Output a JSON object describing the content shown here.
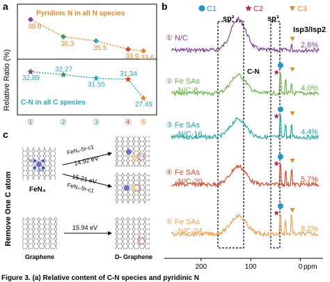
{
  "panels": {
    "a": "a",
    "b": "b",
    "c": "c"
  },
  "chart_data": [
    {
      "type": "scatter",
      "panel": "a",
      "ylabel": "Relative Ratio (%)",
      "x_ticks": [
        "①",
        "②",
        "③",
        "④",
        "⑤"
      ],
      "series": [
        {
          "name": "Pyridinic N in all N species",
          "color": "#e8871e",
          "labels": [
            "39.6",
            "36.3",
            "35.5",
            "33.9",
            "33.6"
          ],
          "values": [
            39.6,
            36.3,
            35.5,
            33.9,
            33.6
          ]
        },
        {
          "name": "C-N in all C species",
          "color": "#27a9b8",
          "labels": [
            "32.89",
            "32.27",
            "31.55",
            "31.34",
            "27.49"
          ],
          "values": [
            32.89,
            32.27,
            31.55,
            31.34,
            27.49
          ]
        }
      ],
      "marker_colors": [
        "#7e3f98",
        "#3a9a56",
        "#27a9b8",
        "#d9472b",
        "#e8871e"
      ]
    },
    {
      "type": "line",
      "panel": "b",
      "xlabel": "ppm",
      "x_ticks": [
        "200",
        "100",
        "0"
      ],
      "x_range": [
        260,
        -40
      ],
      "legend": [
        {
          "label": "C1",
          "color": "#2196c9",
          "shape": "circle"
        },
        {
          "label": "C2",
          "color": "#c2185b",
          "shape": "star"
        },
        {
          "label": "C3",
          "color": "#e8871e",
          "shape": "triangle"
        }
      ],
      "annotations": {
        "sp2": "sp²",
        "sp3": "sp³",
        "cn": "C-N",
        "ratio_header": "Isp3/Isp2"
      },
      "series": [
        {
          "label1": "① N/C",
          "label2": "",
          "ratio": "2.6%",
          "color": "#7e3f98"
        },
        {
          "label1": "② Fe SAs",
          "label2": "-N/C-8",
          "ratio": "4.0%",
          "color": "#6ab344"
        },
        {
          "label1": "③ Fe SAs",
          "label2": "-N/C-16",
          "ratio": "4.4%",
          "color": "#1aa7a7"
        },
        {
          "label1": "④ Fe SAs",
          "label2": "-N/C-20",
          "ratio": "5.7%",
          "color": "#d9472b"
        },
        {
          "label1": "⑤ Fe SAs",
          "label2": "-N/C-24",
          "ratio": "8.2%",
          "color": "#f0a04b"
        }
      ]
    }
  ],
  "panel_c": {
    "side_label": "Remove One C atom",
    "fen4_label": "FeN₄",
    "graphene_label": "Graphene",
    "dgraphene_label": "D- Graphene",
    "n_label": "N",
    "fe_label": "Fe",
    "arrow1_top": "FeN₄-5r-c1",
    "arrow1_bottom": "14.92 eV",
    "arrow2_top": "15.21 eV",
    "arrow2_bottom": "FeN₄-5r-c1",
    "arrow3_top": "15.94 eV"
  },
  "caption": "Figure 3. (a) Relative content of C-N species and pyridinic N"
}
